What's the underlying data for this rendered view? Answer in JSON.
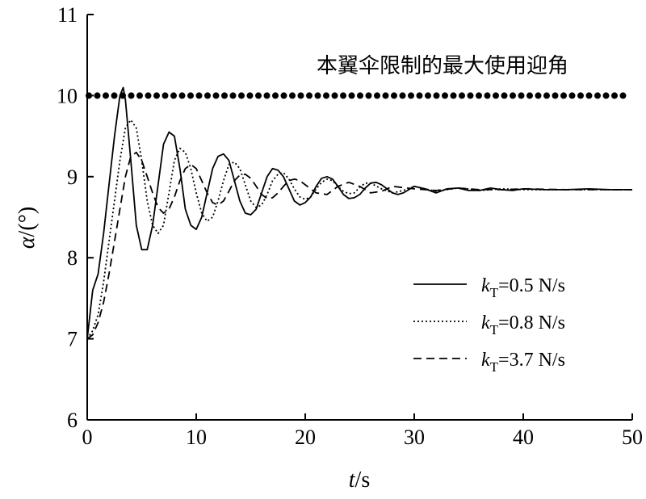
{
  "chart_data": {
    "type": "line",
    "title": "",
    "xlabel": {
      "var": "t",
      "unit": "/s"
    },
    "ylabel": {
      "var": "α",
      "unit": "/(°)"
    },
    "xlim": [
      0,
      50
    ],
    "ylim": [
      6,
      11
    ],
    "xticks": [
      0,
      10,
      20,
      30,
      40,
      50
    ],
    "yticks": [
      6,
      7,
      8,
      9,
      10,
      11
    ],
    "grid": false,
    "legend_position": "right",
    "reference_line": {
      "y": 10,
      "label": "本翼伞限制的最大使用迎角",
      "style": "dotted"
    },
    "series": [
      {
        "name": "k_T=0.5 N/s",
        "legend": {
          "sym": "k",
          "sub": "T",
          "rest": "=0.5 N/s"
        },
        "style": "solid",
        "x": [
          0,
          0.5,
          1.0,
          1.5,
          2.0,
          2.5,
          3.0,
          3.3,
          3.5,
          4.0,
          4.5,
          5.0,
          5.5,
          6.0,
          6.5,
          7.0,
          7.5,
          8.0,
          8.5,
          9.0,
          9.5,
          10.0,
          10.5,
          11.0,
          11.5,
          12.0,
          12.5,
          13.0,
          13.5,
          14.0,
          14.5,
          15.0,
          15.5,
          16.0,
          16.5,
          17.0,
          17.5,
          18.0,
          18.5,
          19.0,
          19.5,
          20.0,
          20.5,
          21.0,
          21.5,
          22.0,
          22.5,
          23.0,
          23.5,
          24.0,
          24.5,
          25.0,
          25.5,
          26.0,
          26.5,
          27.0,
          27.5,
          28.0,
          28.5,
          29.0,
          29.5,
          30.0,
          31.0,
          32.0,
          33.0,
          34.0,
          35.0,
          36.0,
          37.0,
          38.0,
          39.0,
          40.0,
          42.0,
          44.0,
          46.0,
          48.0,
          50.0
        ],
        "values": [
          7.0,
          7.6,
          7.8,
          8.3,
          8.9,
          9.5,
          10.0,
          10.1,
          9.95,
          9.2,
          8.4,
          8.1,
          8.1,
          8.4,
          8.9,
          9.4,
          9.55,
          9.5,
          9.1,
          8.6,
          8.4,
          8.35,
          8.5,
          8.8,
          9.1,
          9.25,
          9.28,
          9.2,
          8.95,
          8.7,
          8.55,
          8.53,
          8.6,
          8.8,
          9.0,
          9.1,
          9.08,
          9.0,
          8.85,
          8.7,
          8.65,
          8.68,
          8.75,
          8.88,
          8.98,
          9.0,
          8.97,
          8.88,
          8.78,
          8.73,
          8.74,
          8.78,
          8.86,
          8.92,
          8.93,
          8.9,
          8.85,
          8.8,
          8.78,
          8.8,
          8.84,
          8.88,
          8.85,
          8.8,
          8.85,
          8.86,
          8.83,
          8.83,
          8.86,
          8.84,
          8.83,
          8.85,
          8.84,
          8.84,
          8.85,
          8.84,
          8.84
        ]
      },
      {
        "name": "k_T=0.8 N/s",
        "legend": {
          "sym": "k",
          "sub": "T",
          "rest": "=0.8 N/s"
        },
        "style": "dotted",
        "x": [
          0,
          0.5,
          1.0,
          1.5,
          2.0,
          2.5,
          3.0,
          3.5,
          4.0,
          4.5,
          5.0,
          5.5,
          6.0,
          6.5,
          7.0,
          7.5,
          8.0,
          8.5,
          9.0,
          9.5,
          10.0,
          10.5,
          11.0,
          11.5,
          12.0,
          12.5,
          13.0,
          13.5,
          14.0,
          14.5,
          15.0,
          15.5,
          16.0,
          16.5,
          17.0,
          17.5,
          18.0,
          18.5,
          19.0,
          19.5,
          20.0,
          20.5,
          21.0,
          21.5,
          22.0,
          22.5,
          23.0,
          23.5,
          24.0,
          24.5,
          25.0,
          25.5,
          26.0,
          27.0,
          28.0,
          29.0,
          30.0,
          31.0,
          32.0,
          33.0,
          34.0,
          35.0,
          36.0,
          38.0,
          40.0,
          42.0,
          45.0,
          48.0,
          50.0
        ],
        "values": [
          7.0,
          7.1,
          7.3,
          7.7,
          8.2,
          8.7,
          9.2,
          9.6,
          9.7,
          9.6,
          9.2,
          8.7,
          8.4,
          8.3,
          8.4,
          8.8,
          9.2,
          9.35,
          9.3,
          9.1,
          8.8,
          8.55,
          8.45,
          8.5,
          8.7,
          8.95,
          9.15,
          9.18,
          9.1,
          8.9,
          8.7,
          8.62,
          8.65,
          8.78,
          8.95,
          9.03,
          9.05,
          8.97,
          8.85,
          8.75,
          8.72,
          8.75,
          8.85,
          8.93,
          8.97,
          8.95,
          8.88,
          8.82,
          8.79,
          8.8,
          8.87,
          8.92,
          8.92,
          8.85,
          8.8,
          8.83,
          8.88,
          8.85,
          8.82,
          8.84,
          8.86,
          8.85,
          8.83,
          8.85,
          8.84,
          8.84,
          8.84,
          8.84,
          8.84
        ]
      },
      {
        "name": "k_T=3.7 N/s",
        "legend": {
          "sym": "k",
          "sub": "T",
          "rest": "=3.7 N/s"
        },
        "style": "dashed",
        "x": [
          0,
          0.5,
          1.0,
          1.5,
          2.0,
          2.5,
          3.0,
          3.5,
          4.0,
          4.5,
          5.0,
          5.5,
          6.0,
          6.5,
          7.0,
          7.5,
          8.0,
          8.5,
          9.0,
          9.5,
          10.0,
          10.5,
          11.0,
          11.5,
          12.0,
          12.5,
          13.0,
          13.5,
          14.0,
          14.5,
          15.0,
          15.5,
          16.0,
          16.5,
          17.0,
          17.5,
          18.0,
          18.5,
          19.0,
          19.5,
          20.0,
          21.0,
          22.0,
          23.0,
          24.0,
          25.0,
          26.0,
          27.0,
          28.0,
          30.0,
          32.0,
          34.0,
          36.0,
          38.0,
          40.0,
          44.0,
          48.0,
          50.0
        ],
        "values": [
          7.0,
          7.05,
          7.2,
          7.45,
          7.8,
          8.2,
          8.6,
          9.0,
          9.25,
          9.3,
          9.2,
          9.0,
          8.8,
          8.62,
          8.55,
          8.6,
          8.75,
          8.95,
          9.1,
          9.15,
          9.1,
          8.95,
          8.8,
          8.68,
          8.65,
          8.7,
          8.82,
          8.95,
          9.02,
          9.03,
          8.98,
          8.88,
          8.78,
          8.73,
          8.74,
          8.8,
          8.88,
          8.95,
          8.97,
          8.95,
          8.9,
          8.8,
          8.78,
          8.88,
          8.93,
          8.88,
          8.8,
          8.82,
          8.88,
          8.85,
          8.83,
          8.86,
          8.84,
          8.84,
          8.85,
          8.84,
          8.84,
          8.84
        ]
      }
    ]
  }
}
